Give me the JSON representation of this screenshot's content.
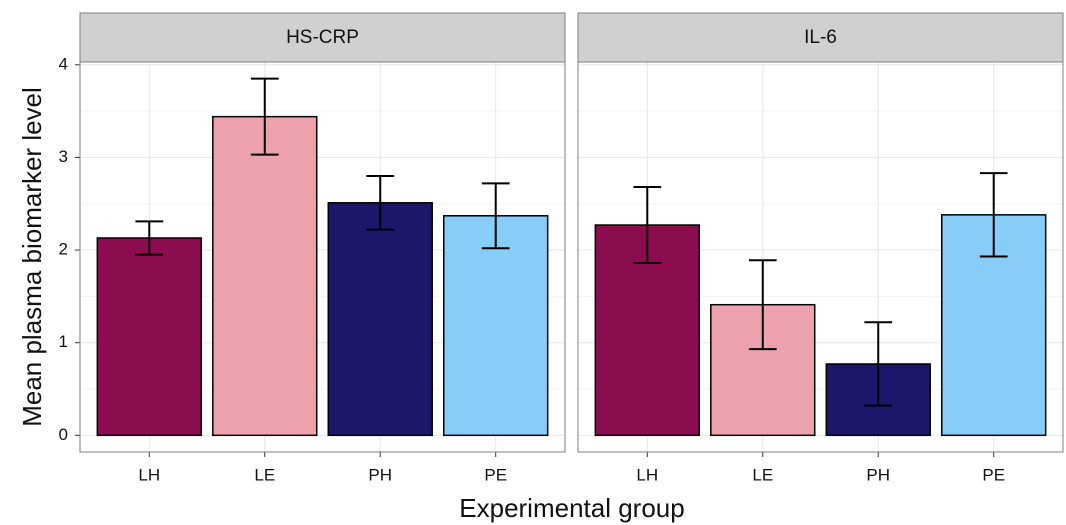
{
  "chart_data": {
    "type": "bar",
    "ylabel": "Mean plasma biomarker level",
    "xlabel": "Experimental group",
    "categories": [
      "LH",
      "LE",
      "PH",
      "PE"
    ],
    "colors": [
      "#8b0d4e",
      "#eca1ad",
      "#1b176b",
      "#87cdf7"
    ],
    "ylim": [
      -0.18,
      4.03
    ],
    "yticks": [
      0,
      1,
      2,
      3,
      4
    ],
    "grid": true,
    "facets": [
      {
        "title": "HS-CRP",
        "values": [
          2.13,
          3.44,
          2.51,
          2.37
        ],
        "errors": [
          0.18,
          0.41,
          0.29,
          0.35
        ]
      },
      {
        "title": "IL-6",
        "values": [
          2.27,
          1.41,
          0.77,
          2.38
        ],
        "errors": [
          0.41,
          0.48,
          0.45,
          0.45
        ]
      }
    ]
  }
}
